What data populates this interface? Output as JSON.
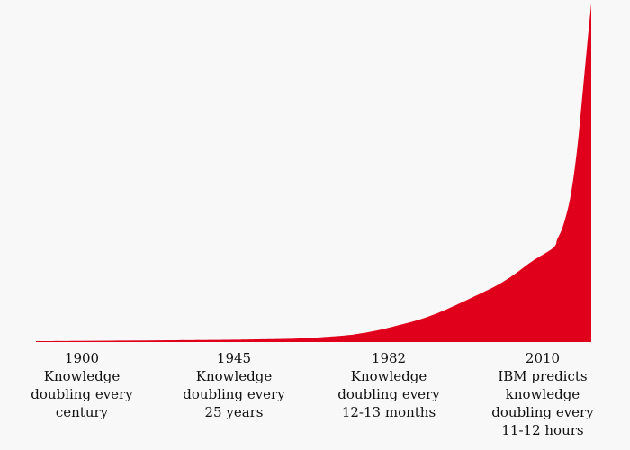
{
  "chart_data": {
    "type": "area",
    "title": "",
    "xlabel": "",
    "ylabel": "",
    "grid": false,
    "legend": "none",
    "color": "#e0001c",
    "x": [
      1900,
      1910,
      1920,
      1930,
      1940,
      1945,
      1950,
      1960,
      1970,
      1975,
      1982,
      1990,
      2000,
      2005,
      2010,
      2015,
      2016,
      2017,
      2018,
      2019,
      2020,
      2021,
      2022,
      2023,
      2024
    ],
    "y": [
      1,
      1.3,
      1.6,
      2.0,
      2.4,
      2.6,
      3,
      4,
      7,
      10,
      17,
      30,
      55,
      70,
      90,
      105,
      115,
      125,
      140,
      160,
      190,
      230,
      280,
      330,
      378
    ],
    "ylim": [
      0,
      380
    ],
    "annotations": [
      {
        "year": "1900",
        "lines": [
          "Knowledge",
          "doubling every",
          "century"
        ]
      },
      {
        "year": "1945",
        "lines": [
          "Knowledge",
          "doubling every",
          "25 years"
        ]
      },
      {
        "year": "1982",
        "lines": [
          "Knowledge",
          "doubling every",
          "12-13 months"
        ]
      },
      {
        "year": "2010",
        "lines": [
          "IBM predicts",
          "knowledge",
          "doubling every",
          "11-12 hours"
        ]
      }
    ]
  }
}
